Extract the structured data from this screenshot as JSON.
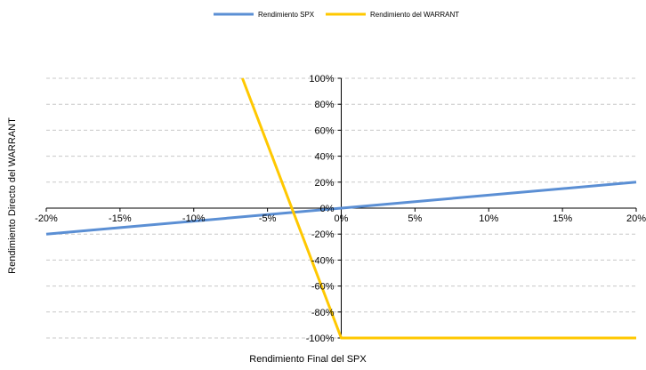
{
  "chart_data": {
    "type": "line",
    "xlabel": "Rendimiento Final del SPX",
    "ylabel": "Rendimiento Directo del WARRANT",
    "xlim": [
      -20,
      20
    ],
    "ylim": [
      -100,
      100
    ],
    "x_ticks": [
      -20,
      -15,
      -10,
      -5,
      0,
      5,
      10,
      15,
      20
    ],
    "x_tick_labels": [
      "-20%",
      "-15%",
      "-10%",
      "-5%",
      "0%",
      "5%",
      "10%",
      "15%",
      "20%"
    ],
    "y_ticks": [
      100,
      80,
      60,
      40,
      20,
      0,
      -20,
      -40,
      -60,
      -80,
      -100
    ],
    "y_tick_labels": [
      "100%",
      "80%",
      "60%",
      "40%",
      "20%",
      "0%",
      "-20%",
      "-40%",
      "-60%",
      "-80%",
      "-100%"
    ],
    "grid": "horizontal dashed",
    "legend_position": "top-center",
    "series": [
      {
        "name": "Rendimiento SPX",
        "color": "#5B8FD4",
        "x": [
          -20,
          20
        ],
        "y": [
          -20,
          20
        ]
      },
      {
        "name": "Rendimiento del WARRANT",
        "color": "#FFC800",
        "x": [
          -6.7,
          0,
          20
        ],
        "y": [
          100,
          -100,
          -100
        ]
      }
    ]
  }
}
